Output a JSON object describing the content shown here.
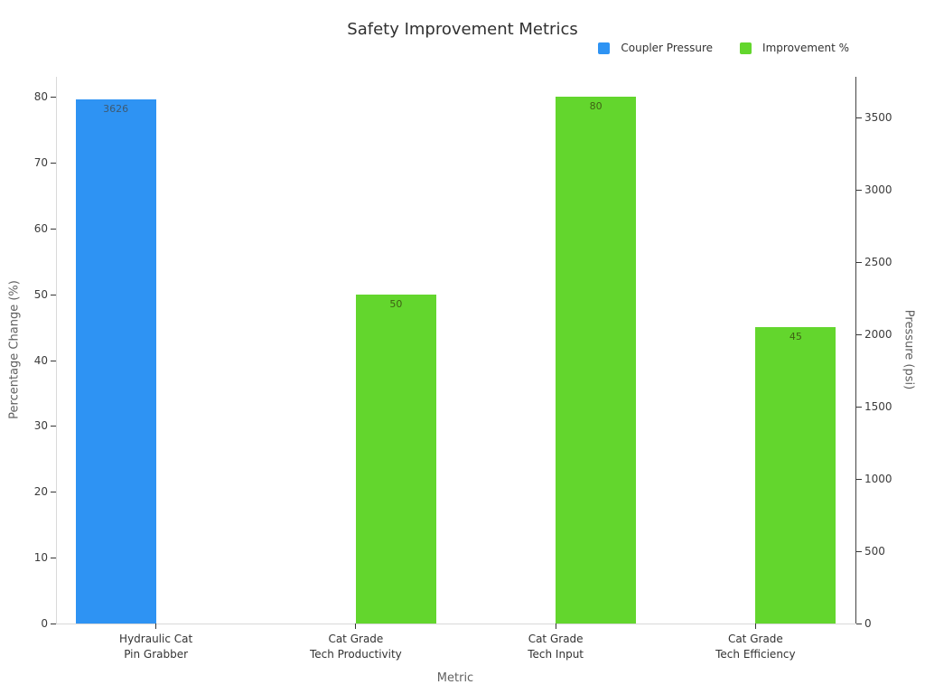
{
  "chart_data": {
    "type": "bar",
    "title": "Safety Improvement Metrics",
    "xlabel": "Metric",
    "ylabel_left": "Percentage Change (%)",
    "ylabel_right": "Pressure (psi)",
    "categories": [
      {
        "lines": [
          "Hydraulic Cat",
          "Pin Grabber"
        ]
      },
      {
        "lines": [
          "Cat Grade",
          "Tech Productivity"
        ]
      },
      {
        "lines": [
          "Cat Grade",
          "Tech Input"
        ]
      },
      {
        "lines": [
          "Cat Grade",
          "Tech Efficiency"
        ]
      }
    ],
    "series": [
      {
        "name": "Coupler Pressure",
        "axis": "right",
        "color": "#2e93f3",
        "label_color": "#3e5a72",
        "values": [
          3626,
          null,
          null,
          null
        ],
        "labels": [
          "3626",
          "",
          "",
          ""
        ]
      },
      {
        "name": "Improvement %",
        "axis": "left",
        "color": "#63d62d",
        "label_color": "#3f6114",
        "values": [
          null,
          50,
          80,
          45
        ],
        "labels": [
          "",
          "50",
          "80",
          "45"
        ]
      }
    ],
    "left_axis": {
      "ticks": [
        0,
        10,
        20,
        30,
        40,
        50,
        60,
        70,
        80
      ],
      "range": [
        0,
        83.02
      ]
    },
    "right_axis": {
      "ticks": [
        0,
        500,
        1000,
        1500,
        2000,
        2500,
        3000,
        3500
      ],
      "range": [
        0,
        3781
      ]
    },
    "legend_position": "top-right",
    "grid": false
  }
}
